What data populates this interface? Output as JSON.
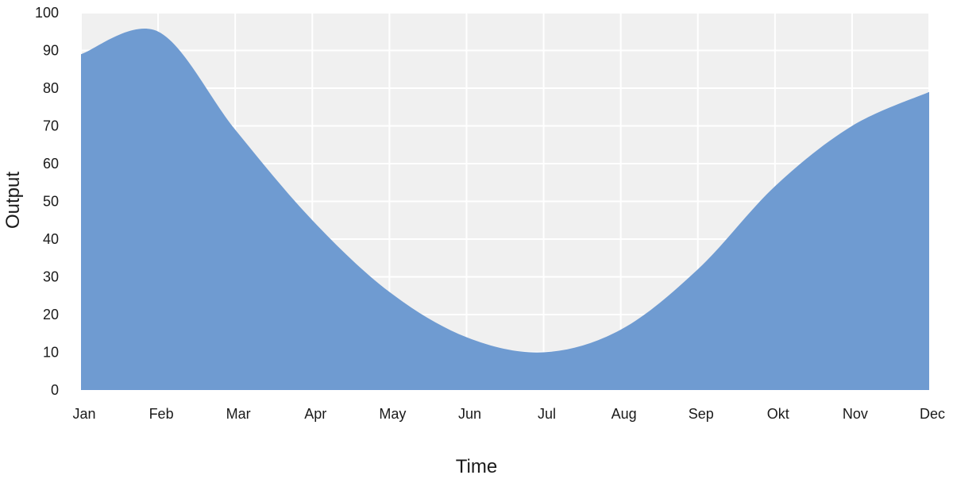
{
  "colors": {
    "plot_background": "#f0f0f0",
    "grid": "#ffffff",
    "area_fill": "#6f9bd1",
    "text": "#1a1a1a"
  },
  "chart_data": {
    "type": "area",
    "title": "",
    "xlabel": "Time",
    "ylabel": "Output",
    "categories": [
      "Jan",
      "Feb",
      "Mar",
      "Apr",
      "May",
      "Jun",
      "Jul",
      "Aug",
      "Sep",
      "Okt",
      "Nov",
      "Dec"
    ],
    "series": [
      {
        "name": "",
        "values": [
          89,
          95,
          69,
          45,
          26,
          14,
          10,
          16,
          32,
          54,
          70,
          79
        ]
      }
    ],
    "ylim": [
      0,
      100
    ],
    "yticks": [
      0,
      10,
      20,
      30,
      40,
      50,
      60,
      70,
      80,
      90,
      100
    ],
    "grid": true,
    "legend": "none"
  }
}
